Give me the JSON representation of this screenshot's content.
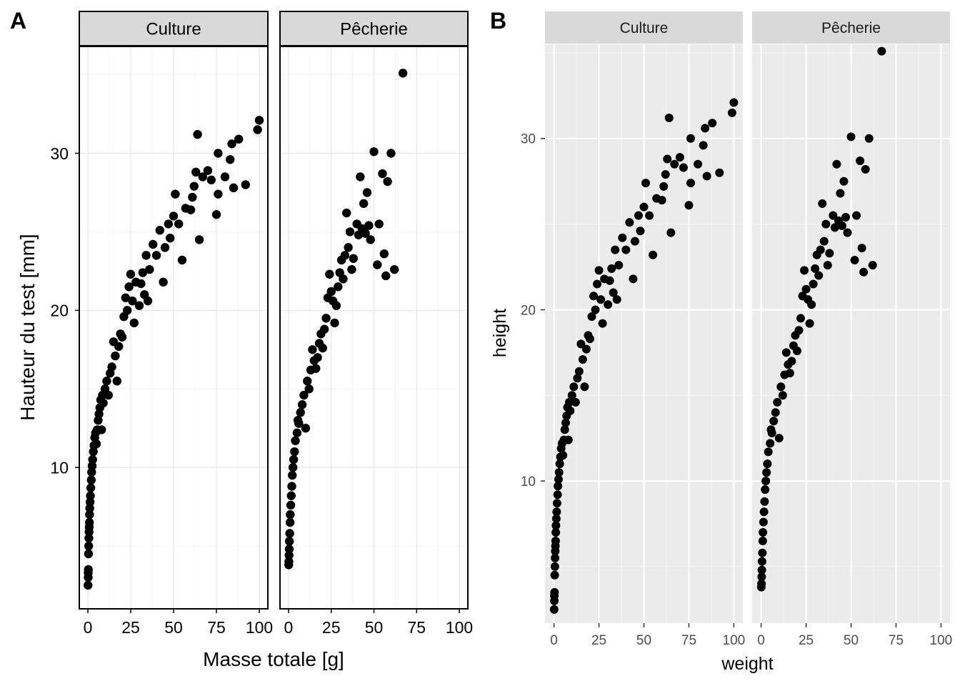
{
  "chart_data": [
    {
      "type": "scatter",
      "theme": "bw",
      "panel_tag": "A",
      "xlabel": "Masse totale  [g]",
      "ylabel": "Hauteur du test  [mm]",
      "xlim": [
        -5,
        105
      ],
      "ylim": [
        1.0,
        36.8
      ],
      "xticks": [
        0,
        25,
        50,
        75,
        100
      ],
      "yticks": [
        10,
        20,
        30
      ],
      "grid": true,
      "facets": [
        {
          "label": "Culture",
          "points": [
            [
              0.1,
              2.5
            ],
            [
              0.2,
              3.0
            ],
            [
              0.2,
              3.3
            ],
            [
              0.3,
              3.5
            ],
            [
              0.4,
              4.5
            ],
            [
              0.5,
              5.0
            ],
            [
              0.6,
              5.5
            ],
            [
              0.7,
              5.9
            ],
            [
              0.8,
              6.2
            ],
            [
              0.9,
              6.5
            ],
            [
              1.0,
              7.0
            ],
            [
              1.1,
              7.4
            ],
            [
              1.3,
              7.8
            ],
            [
              1.5,
              8.2
            ],
            [
              1.7,
              8.7
            ],
            [
              2.0,
              9.2
            ],
            [
              2.2,
              9.7
            ],
            [
              2.5,
              10.1
            ],
            [
              2.8,
              10.5
            ],
            [
              3.2,
              11.0
            ],
            [
              3.6,
              11.4
            ],
            [
              4.0,
              11.9
            ],
            [
              4.5,
              12.2
            ],
            [
              5.0,
              11.5
            ],
            [
              5.5,
              12.4
            ],
            [
              6.0,
              13.0
            ],
            [
              6.5,
              13.4
            ],
            [
              7.0,
              13.8
            ],
            [
              7.5,
              14.3
            ],
            [
              8.0,
              12.4
            ],
            [
              8.5,
              14.6
            ],
            [
              9.0,
              14.1
            ],
            [
              10.0,
              15.0
            ],
            [
              11.0,
              15.5
            ],
            [
              12.0,
              14.6
            ],
            [
              13.0,
              16.0
            ],
            [
              14.0,
              16.4
            ],
            [
              15.0,
              18.0
            ],
            [
              16.0,
              17.1
            ],
            [
              17.0,
              15.5
            ],
            [
              18.0,
              17.7
            ],
            [
              19.0,
              18.5
            ],
            [
              20.0,
              18.3
            ],
            [
              21.0,
              19.6
            ],
            [
              22.0,
              20.8
            ],
            [
              23.0,
              20.0
            ],
            [
              24.0,
              21.5
            ],
            [
              25.0,
              22.3
            ],
            [
              26.0,
              20.6
            ],
            [
              27.0,
              19.2
            ],
            [
              28.0,
              21.8
            ],
            [
              30.0,
              20.3
            ],
            [
              31.0,
              21.7
            ],
            [
              32.0,
              22.4
            ],
            [
              33.0,
              21.0
            ],
            [
              34.0,
              23.5
            ],
            [
              35.0,
              20.6
            ],
            [
              36.0,
              22.6
            ],
            [
              38.0,
              24.2
            ],
            [
              40.0,
              23.5
            ],
            [
              42.0,
              25.1
            ],
            [
              44.0,
              21.8
            ],
            [
              45.0,
              24.0
            ],
            [
              47.0,
              25.5
            ],
            [
              48.0,
              24.6
            ],
            [
              50.0,
              26.0
            ],
            [
              51.0,
              27.4
            ],
            [
              53.0,
              25.5
            ],
            [
              55.0,
              23.2
            ],
            [
              57.0,
              26.5
            ],
            [
              60.0,
              26.4
            ],
            [
              61.0,
              27.2
            ],
            [
              62.0,
              27.9
            ],
            [
              63.0,
              28.8
            ],
            [
              64.0,
              31.2
            ],
            [
              65.0,
              24.5
            ],
            [
              67.0,
              28.5
            ],
            [
              70.0,
              28.9
            ],
            [
              72.0,
              28.3
            ],
            [
              75.0,
              26.1
            ],
            [
              76.0,
              27.4
            ],
            [
              76.0,
              30.0
            ],
            [
              80.0,
              28.5
            ],
            [
              83.0,
              29.6
            ],
            [
              84.0,
              30.6
            ],
            [
              85.0,
              27.8
            ],
            [
              88.0,
              30.9
            ],
            [
              92.0,
              28.0
            ],
            [
              99.0,
              31.5
            ],
            [
              100.0,
              32.1
            ]
          ]
        },
        {
          "label": "Pêcherie",
          "points": [
            [
              0.1,
              3.8
            ],
            [
              0.2,
              4.0
            ],
            [
              0.3,
              4.4
            ],
            [
              0.4,
              4.8
            ],
            [
              0.5,
              5.3
            ],
            [
              0.7,
              5.8
            ],
            [
              0.9,
              6.5
            ],
            [
              1.0,
              7.0
            ],
            [
              1.3,
              7.6
            ],
            [
              1.6,
              8.2
            ],
            [
              1.9,
              8.8
            ],
            [
              2.2,
              9.5
            ],
            [
              2.6,
              10.0
            ],
            [
              3.0,
              10.5
            ],
            [
              3.5,
              11.0
            ],
            [
              4.0,
              11.7
            ],
            [
              5.0,
              12.2
            ],
            [
              5.5,
              13.0
            ],
            [
              6.0,
              12.8
            ],
            [
              7.0,
              13.5
            ],
            [
              8.0,
              14.0
            ],
            [
              9.0,
              14.6
            ],
            [
              10.0,
              12.5
            ],
            [
              11.0,
              15.5
            ],
            [
              12.0,
              15.0
            ],
            [
              13.0,
              16.2
            ],
            [
              14.0,
              17.5
            ],
            [
              15.0,
              16.8
            ],
            [
              16.0,
              16.3
            ],
            [
              17.0,
              17.0
            ],
            [
              18.0,
              17.9
            ],
            [
              19.0,
              18.5
            ],
            [
              20.0,
              17.6
            ],
            [
              21.0,
              18.8
            ],
            [
              22.0,
              19.5
            ],
            [
              23.0,
              20.8
            ],
            [
              24.0,
              22.3
            ],
            [
              25.0,
              21.2
            ],
            [
              26.0,
              20.6
            ],
            [
              27.0,
              19.2
            ],
            [
              28.0,
              20.3
            ],
            [
              29.0,
              21.5
            ],
            [
              30.0,
              22.4
            ],
            [
              31.0,
              23.2
            ],
            [
              32.0,
              22.0
            ],
            [
              33.0,
              23.5
            ],
            [
              34.0,
              26.2
            ],
            [
              35.0,
              24.0
            ],
            [
              36.0,
              25.0
            ],
            [
              37.0,
              22.6
            ],
            [
              38.0,
              23.3
            ],
            [
              40.0,
              25.5
            ],
            [
              41.0,
              24.8
            ],
            [
              42.0,
              28.5
            ],
            [
              43.0,
              25.2
            ],
            [
              44.0,
              26.8
            ],
            [
              45.0,
              24.9
            ],
            [
              46.0,
              27.5
            ],
            [
              47.0,
              25.4
            ],
            [
              48.0,
              24.5
            ],
            [
              50.0,
              30.1
            ],
            [
              52.0,
              22.9
            ],
            [
              53.0,
              25.5
            ],
            [
              55.0,
              28.7
            ],
            [
              56.0,
              23.6
            ],
            [
              57.0,
              22.2
            ],
            [
              58.0,
              28.2
            ],
            [
              60.0,
              30.0
            ],
            [
              62.0,
              22.6
            ],
            [
              67.0,
              35.1
            ]
          ]
        }
      ]
    },
    {
      "type": "scatter",
      "theme": "gray",
      "panel_tag": "B",
      "xlabel": "weight",
      "ylabel": "height",
      "xlim": [
        -5,
        105
      ],
      "ylim": [
        1.7,
        35.5
      ],
      "xticks": [
        0,
        25,
        50,
        75,
        100
      ],
      "yticks": [
        10,
        20,
        30
      ],
      "grid": true,
      "facets": [
        {
          "label": "Culture",
          "same_points_as": "A.Culture"
        },
        {
          "label": "Pêcherie",
          "same_points_as": "A.Pêcherie"
        }
      ]
    }
  ]
}
